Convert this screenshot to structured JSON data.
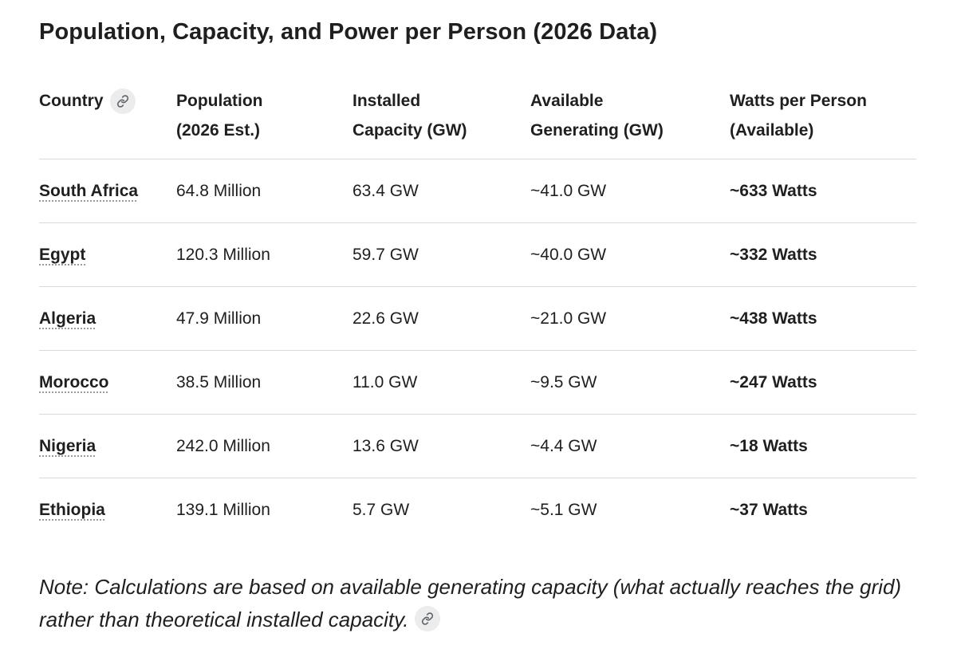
{
  "title": "Population, Capacity, and Power per Person (2026 Data)",
  "table": {
    "headers": [
      {
        "line1": "Country",
        "line2": ""
      },
      {
        "line1": "Population",
        "line2": "(2026 Est.)"
      },
      {
        "line1": "Installed",
        "line2": "Capacity (GW)"
      },
      {
        "line1": "Available",
        "line2": "Generating (GW)"
      },
      {
        "line1": "Watts per Person",
        "line2": "(Available)"
      }
    ],
    "rows": [
      {
        "country": "South Africa",
        "population": "64.8 Million",
        "installed": "63.4 GW",
        "available": "~41.0 GW",
        "watts": "~633 Watts"
      },
      {
        "country": "Egypt",
        "population": "120.3 Million",
        "installed": "59.7 GW",
        "available": "~40.0 GW",
        "watts": "~332 Watts"
      },
      {
        "country": "Algeria",
        "population": "47.9 Million",
        "installed": "22.6 GW",
        "available": "~21.0 GW",
        "watts": "~438 Watts"
      },
      {
        "country": "Morocco",
        "population": "38.5 Million",
        "installed": "11.0 GW",
        "available": "~9.5 GW",
        "watts": "~247 Watts"
      },
      {
        "country": "Nigeria",
        "population": "242.0 Million",
        "installed": "13.6 GW",
        "available": "~4.4 GW",
        "watts": "~18 Watts"
      },
      {
        "country": "Ethiopia",
        "population": "139.1 Million",
        "installed": "5.7 GW",
        "available": "~5.1 GW",
        "watts": "~37 Watts"
      }
    ]
  },
  "note": "Note: Calculations are based on available generating capacity (what actually reaches the grid) rather than theoretical installed capacity.",
  "icons": {
    "header_link": "link-icon",
    "note_link": "link-icon"
  },
  "colors": {
    "text": "#1f1f1f",
    "divider": "#d9d9d9",
    "chip_background": "#ececec",
    "dotted_underline": "#9a9a9a"
  }
}
